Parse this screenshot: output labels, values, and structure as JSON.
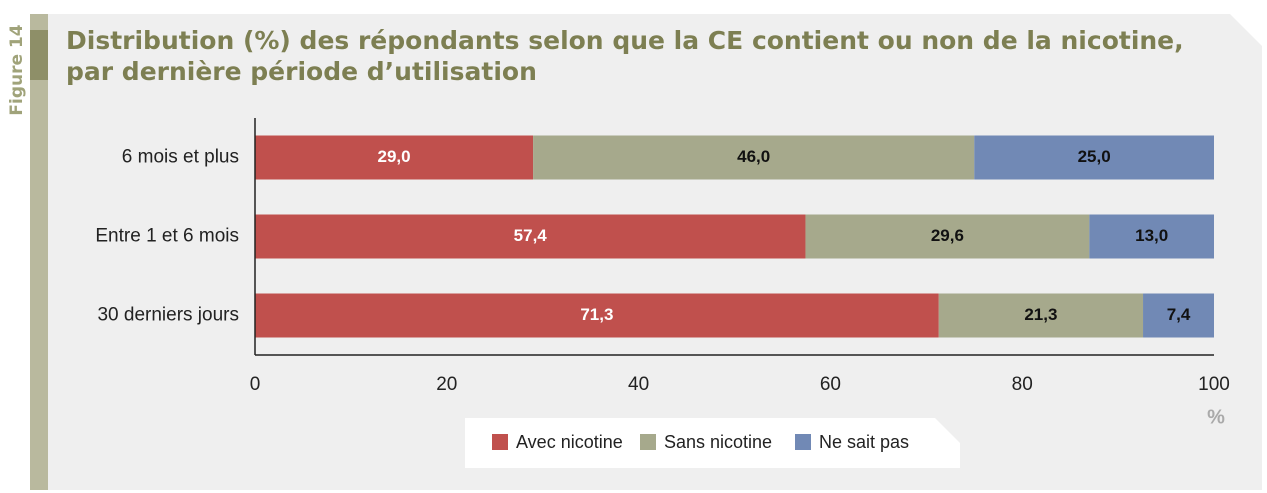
{
  "chart_data": {
    "type": "stacked_barh",
    "figure_label": "Figure 14",
    "title": [
      "Distribution (%) des répondants selon que la CE contient ou non de la nicotine,",
      "par dernière période d’utilisation"
    ],
    "categories": [
      "6 mois et plus",
      "Entre 1 et 6 mois",
      "30 derniers jours"
    ],
    "series": [
      {
        "name": "Avec nicotine",
        "color": "#c0504d",
        "label_color": "#ffffff",
        "values": [
          29.0,
          57.4,
          71.3
        ],
        "value_labels": [
          "29,0",
          "57,4",
          "71,3"
        ]
      },
      {
        "name": "Sans nicotine",
        "color": "#a6a98c",
        "label_color": "#111111",
        "values": [
          46.0,
          29.6,
          21.3
        ],
        "value_labels": [
          "46,0",
          "29,6",
          "21,3"
        ]
      },
      {
        "name": "Ne sait pas",
        "color": "#7189b5",
        "label_color": "#111111",
        "values": [
          25.0,
          13.0,
          7.4
        ],
        "value_labels": [
          "25,0",
          "13,0",
          "7,4"
        ]
      }
    ],
    "xlim": [
      0,
      100
    ],
    "xticks": [
      0,
      20,
      40,
      60,
      80,
      100
    ],
    "x_unit_label": "%",
    "legend": "bottom"
  }
}
